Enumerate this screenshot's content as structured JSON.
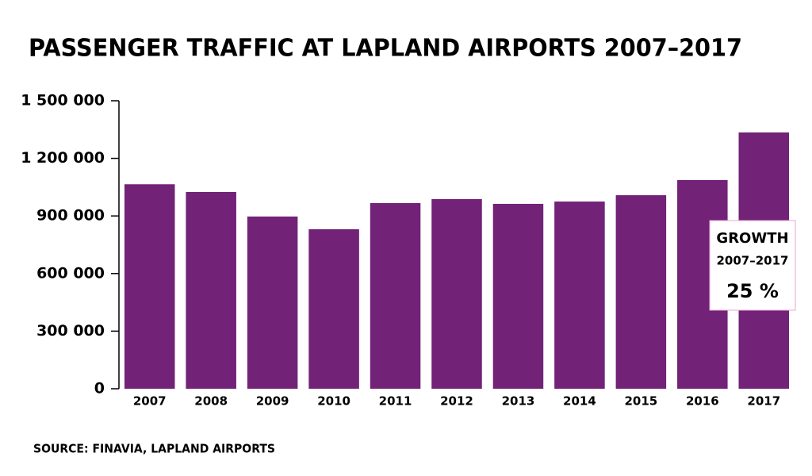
{
  "chart_data": {
    "type": "bar",
    "title": "PASSENGER TRAFFIC AT LAPLAND AIRPORTS 2007–2017",
    "categories": [
      "2007",
      "2008",
      "2009",
      "2010",
      "2011",
      "2012",
      "2013",
      "2014",
      "2015",
      "2016",
      "2017"
    ],
    "values": [
      1065000,
      1025000,
      897000,
      831000,
      967000,
      988000,
      963000,
      975000,
      1008000,
      1087000,
      1335000
    ],
    "color": "#722277",
    "ylim": [
      0,
      1500000
    ],
    "yticks": [
      0,
      {
        "value": 300000,
        "label": "300 000"
      },
      {
        "value": 600000,
        "label": "600 000"
      },
      {
        "value": 900000,
        "label": "900 000"
      },
      {
        "value": 1200000,
        "label": "1 200 000"
      },
      {
        "value": 1500000,
        "label": "1 500 000"
      }
    ],
    "grid": false,
    "annotation": {
      "heading": "GROWTH",
      "period": "2007–2017",
      "value": "25 %"
    },
    "source": "SOURCE: FINAVIA, LAPLAND AIRPORTS"
  }
}
